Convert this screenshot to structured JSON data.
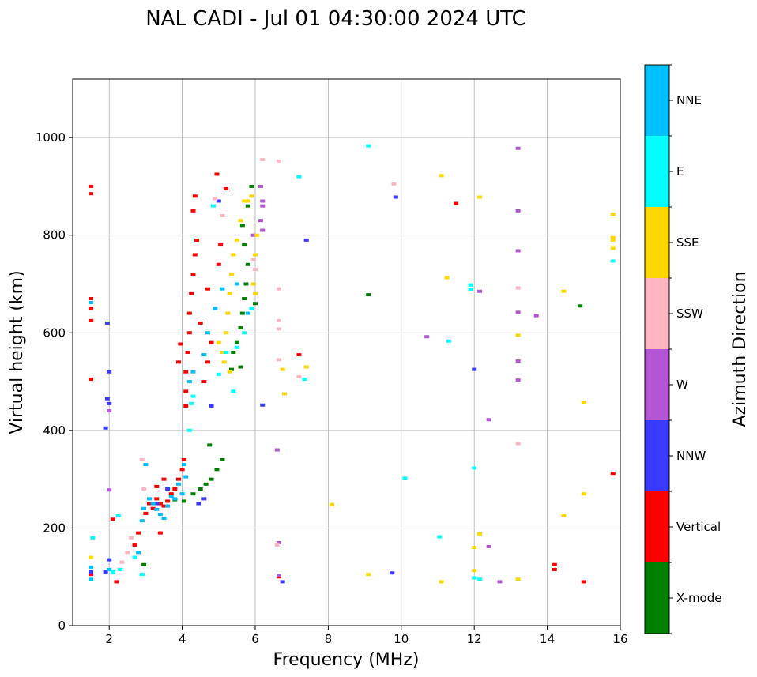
{
  "chart_data": {
    "type": "scatter",
    "title": "NAL CADI - Jul 01 04:30:00 2024 UTC",
    "xlabel": "Frequency (MHz)",
    "ylabel": "Virtual height (km)",
    "xlim": [
      1,
      16
    ],
    "ylim": [
      0,
      1120
    ],
    "xticks": [
      2,
      4,
      6,
      8,
      10,
      12,
      14,
      16
    ],
    "yticks": [
      0,
      200,
      400,
      600,
      800,
      1000
    ],
    "grid": true,
    "colorbar": {
      "title": "Azimuth Direction",
      "categories": [
        {
          "label": "X-mode",
          "color": "#008000"
        },
        {
          "label": "Vertical",
          "color": "#ff0000"
        },
        {
          "label": "NNW",
          "color": "#3a3aff"
        },
        {
          "label": "W",
          "color": "#b455d6"
        },
        {
          "label": "SSW",
          "color": "#ffb6c1"
        },
        {
          "label": "SSE",
          "color": "#ffd700"
        },
        {
          "label": "E",
          "color": "#00ffff"
        },
        {
          "label": "NNE",
          "color": "#00bfff"
        }
      ]
    },
    "series": [
      {
        "name": "X-mode",
        "points": [
          [
            2.95,
            125
          ],
          [
            3.8,
            258
          ],
          [
            4.05,
            255
          ],
          [
            4.3,
            270
          ],
          [
            4.5,
            280
          ],
          [
            4.65,
            290
          ],
          [
            4.8,
            300
          ],
          [
            4.95,
            320
          ],
          [
            5.1,
            340
          ],
          [
            4.75,
            370
          ],
          [
            5.35,
            525
          ],
          [
            5.4,
            560
          ],
          [
            5.5,
            580
          ],
          [
            5.6,
            610
          ],
          [
            5.65,
            640
          ],
          [
            5.7,
            670
          ],
          [
            5.75,
            700
          ],
          [
            5.8,
            740
          ],
          [
            5.7,
            780
          ],
          [
            5.65,
            820
          ],
          [
            5.8,
            860
          ],
          [
            5.9,
            900
          ],
          [
            6.0,
            660
          ],
          [
            5.6,
            530
          ],
          [
            9.1,
            678
          ],
          [
            14.9,
            655
          ]
        ]
      },
      {
        "name": "Vertical",
        "points": [
          [
            1.5,
            105
          ],
          [
            1.5,
            505
          ],
          [
            1.5,
            625
          ],
          [
            1.5,
            650
          ],
          [
            1.5,
            670
          ],
          [
            1.5,
            885
          ],
          [
            1.5,
            900
          ],
          [
            2.1,
            218
          ],
          [
            2.2,
            90
          ],
          [
            2.7,
            165
          ],
          [
            2.8,
            190
          ],
          [
            3.0,
            230
          ],
          [
            3.1,
            250
          ],
          [
            3.2,
            240
          ],
          [
            3.3,
            260
          ],
          [
            3.4,
            250
          ],
          [
            3.5,
            245
          ],
          [
            3.6,
            255
          ],
          [
            3.7,
            270
          ],
          [
            3.8,
            280
          ],
          [
            3.9,
            300
          ],
          [
            4.0,
            320
          ],
          [
            4.05,
            340
          ],
          [
            3.5,
            300
          ],
          [
            3.3,
            285
          ],
          [
            3.4,
            190
          ],
          [
            4.1,
            450
          ],
          [
            4.1,
            480
          ],
          [
            4.1,
            520
          ],
          [
            4.15,
            560
          ],
          [
            4.2,
            600
          ],
          [
            4.2,
            640
          ],
          [
            4.25,
            680
          ],
          [
            4.3,
            720
          ],
          [
            4.35,
            760
          ],
          [
            4.4,
            790
          ],
          [
            4.3,
            850
          ],
          [
            4.35,
            880
          ],
          [
            4.6,
            500
          ],
          [
            4.7,
            540
          ],
          [
            4.8,
            580
          ],
          [
            4.5,
            620
          ],
          [
            4.9,
            650
          ],
          [
            4.7,
            690
          ],
          [
            5.0,
            740
          ],
          [
            5.05,
            780
          ],
          [
            5.2,
            895
          ],
          [
            4.95,
            925
          ],
          [
            3.9,
            540
          ],
          [
            3.95,
            577
          ],
          [
            7.2,
            920
          ],
          [
            7.2,
            555
          ],
          [
            14.2,
            125
          ],
          [
            14.2,
            115
          ],
          [
            15.0,
            90
          ],
          [
            15.8,
            312
          ],
          [
            11.5,
            865
          ],
          [
            6.65,
            100
          ]
        ]
      },
      {
        "name": "NNW",
        "points": [
          [
            1.5,
            110
          ],
          [
            2.0,
            520
          ],
          [
            1.95,
            620
          ],
          [
            1.95,
            465
          ],
          [
            2.0,
            455
          ],
          [
            1.9,
            405
          ],
          [
            2.0,
            135
          ],
          [
            1.9,
            110
          ],
          [
            3.3,
            250
          ],
          [
            3.6,
            280
          ],
          [
            4.45,
            250
          ],
          [
            4.6,
            260
          ],
          [
            6.2,
            452
          ],
          [
            6.75,
            90
          ],
          [
            7.4,
            790
          ],
          [
            9.75,
            108
          ],
          [
            9.85,
            878
          ],
          [
            12.0,
            525
          ],
          [
            5.0,
            870
          ],
          [
            4.8,
            450
          ]
        ]
      },
      {
        "name": "W",
        "points": [
          [
            2.0,
            440
          ],
          [
            2.0,
            278
          ],
          [
            6.6,
            360
          ],
          [
            6.65,
            170
          ],
          [
            6.65,
            103
          ],
          [
            6.15,
            900
          ],
          [
            6.2,
            870
          ],
          [
            6.15,
            830
          ],
          [
            6.2,
            810
          ],
          [
            6.2,
            860
          ],
          [
            10.7,
            592
          ],
          [
            12.15,
            685
          ],
          [
            12.4,
            422
          ],
          [
            12.4,
            162
          ],
          [
            12.7,
            90
          ],
          [
            13.2,
            978
          ],
          [
            13.2,
            850
          ],
          [
            13.2,
            768
          ],
          [
            13.2,
            642
          ],
          [
            13.2,
            542
          ],
          [
            13.2,
            503
          ],
          [
            13.7,
            635
          ],
          [
            5.95,
            800
          ]
        ]
      },
      {
        "name": "SSW",
        "points": [
          [
            2.35,
            130
          ],
          [
            2.5,
            150
          ],
          [
            2.6,
            180
          ],
          [
            2.9,
            340
          ],
          [
            2.95,
            280
          ],
          [
            6.2,
            955
          ],
          [
            6.65,
            952
          ],
          [
            6.65,
            690
          ],
          [
            6.65,
            625
          ],
          [
            6.65,
            608
          ],
          [
            6.65,
            545
          ],
          [
            6.6,
            165
          ],
          [
            7.2,
            510
          ],
          [
            9.8,
            905
          ],
          [
            13.2,
            692
          ],
          [
            13.2,
            373
          ],
          [
            5.95,
            750
          ],
          [
            6.0,
            730
          ],
          [
            4.9,
            875
          ],
          [
            5.1,
            840
          ]
        ]
      },
      {
        "name": "SSE",
        "points": [
          [
            1.5,
            140
          ],
          [
            5.1,
            560
          ],
          [
            5.2,
            600
          ],
          [
            5.25,
            640
          ],
          [
            5.3,
            680
          ],
          [
            5.35,
            720
          ],
          [
            5.4,
            760
          ],
          [
            5.5,
            790
          ],
          [
            5.6,
            830
          ],
          [
            5.7,
            870
          ],
          [
            5.8,
            870
          ],
          [
            5.9,
            880
          ],
          [
            6.0,
            760
          ],
          [
            6.05,
            800
          ],
          [
            5.0,
            580
          ],
          [
            5.15,
            540
          ],
          [
            5.3,
            520
          ],
          [
            5.95,
            700
          ],
          [
            6.0,
            680
          ],
          [
            6.75,
            525
          ],
          [
            6.8,
            475
          ],
          [
            7.4,
            530
          ],
          [
            8.1,
            248
          ],
          [
            9.1,
            105
          ],
          [
            11.1,
            922
          ],
          [
            11.1,
            90
          ],
          [
            11.25,
            713
          ],
          [
            12.0,
            113
          ],
          [
            12.15,
            878
          ],
          [
            12.15,
            188
          ],
          [
            13.2,
            595
          ],
          [
            13.2,
            95
          ],
          [
            14.45,
            685
          ],
          [
            14.45,
            225
          ],
          [
            15.0,
            458
          ],
          [
            15.0,
            270
          ],
          [
            15.8,
            843
          ],
          [
            15.8,
            795
          ],
          [
            15.8,
            790
          ],
          [
            15.8,
            773
          ],
          [
            12.0,
            160
          ]
        ]
      },
      {
        "name": "E",
        "points": [
          [
            1.55,
            180
          ],
          [
            2.25,
            225
          ],
          [
            2.1,
            110
          ],
          [
            2.3,
            115
          ],
          [
            2.7,
            140
          ],
          [
            2.9,
            105
          ],
          [
            4.2,
            400
          ],
          [
            4.25,
            455
          ],
          [
            4.3,
            470
          ],
          [
            5.0,
            515
          ],
          [
            5.2,
            560
          ],
          [
            5.5,
            570
          ],
          [
            5.7,
            600
          ],
          [
            5.4,
            480
          ],
          [
            5.9,
            650
          ],
          [
            7.2,
            920
          ],
          [
            7.35,
            505
          ],
          [
            9.1,
            983
          ],
          [
            10.1,
            302
          ],
          [
            11.05,
            182
          ],
          [
            11.3,
            583
          ],
          [
            11.9,
            698
          ],
          [
            11.9,
            688
          ],
          [
            12.0,
            323
          ],
          [
            12.15,
            95
          ],
          [
            12.0,
            98
          ],
          [
            15.8,
            747
          ],
          [
            4.85,
            860
          ]
        ]
      },
      {
        "name": "NNE",
        "points": [
          [
            1.5,
            120
          ],
          [
            1.5,
            95
          ],
          [
            1.5,
            662
          ],
          [
            2.0,
            115
          ],
          [
            2.8,
            150
          ],
          [
            2.9,
            215
          ],
          [
            2.95,
            240
          ],
          [
            3.0,
            330
          ],
          [
            3.1,
            260
          ],
          [
            3.2,
            250
          ],
          [
            3.3,
            238
          ],
          [
            3.4,
            228
          ],
          [
            3.5,
            220
          ],
          [
            3.6,
            245
          ],
          [
            3.7,
            265
          ],
          [
            3.8,
            260
          ],
          [
            3.9,
            290
          ],
          [
            4.0,
            270
          ],
          [
            4.05,
            330
          ],
          [
            4.1,
            305
          ],
          [
            4.2,
            500
          ],
          [
            4.3,
            520
          ],
          [
            4.6,
            555
          ],
          [
            4.7,
            600
          ],
          [
            4.9,
            650
          ],
          [
            5.1,
            690
          ],
          [
            5.5,
            700
          ],
          [
            5.8,
            640
          ]
        ]
      }
    ]
  }
}
